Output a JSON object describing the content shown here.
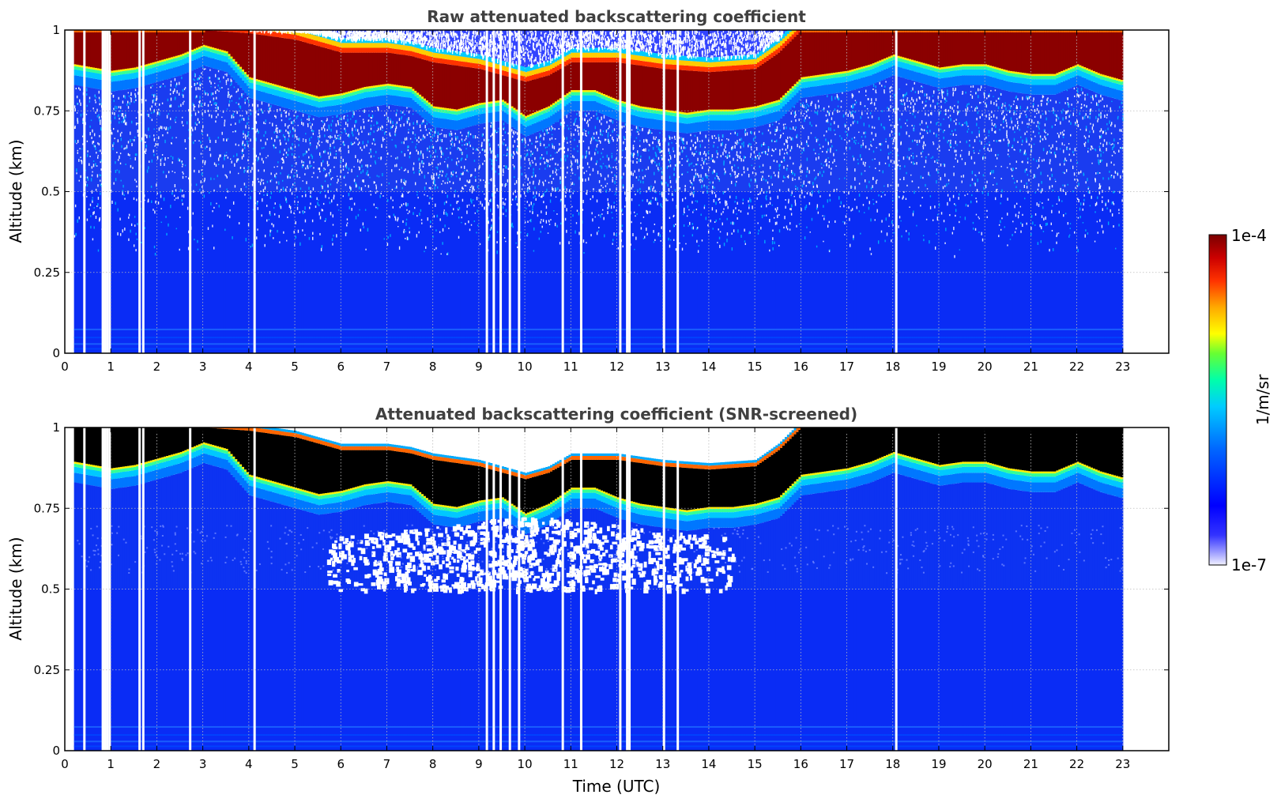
{
  "chart_data": [
    {
      "type": "heatmap",
      "title": "Raw attenuated backscattering coefficient",
      "xlabel": "",
      "ylabel": "Altitude (km)",
      "xlim": [
        0,
        24
      ],
      "ylim": [
        0,
        1
      ],
      "xticks": [
        "0",
        "1",
        "2",
        "3",
        "4",
        "5",
        "6",
        "7",
        "8",
        "9",
        "10",
        "11",
        "12",
        "13",
        "14",
        "15",
        "16",
        "17",
        "18",
        "19",
        "20",
        "21",
        "22",
        "23"
      ],
      "yticks": [
        "0",
        "0.25",
        "0.5",
        "0.75",
        "1"
      ],
      "grid": true,
      "data_time_range": [
        0.2,
        23.0
      ],
      "layer_base_km": [
        [
          0.2,
          0.86
        ],
        [
          0.6,
          0.85
        ],
        [
          1.0,
          0.84
        ],
        [
          1.5,
          0.85
        ],
        [
          2.0,
          0.87
        ],
        [
          2.5,
          0.89
        ],
        [
          3.0,
          0.92
        ],
        [
          3.5,
          0.9
        ],
        [
          4.0,
          0.82
        ],
        [
          4.5,
          0.8
        ],
        [
          5.0,
          0.78
        ],
        [
          5.5,
          0.76
        ],
        [
          6.0,
          0.77
        ],
        [
          6.5,
          0.79
        ],
        [
          7.0,
          0.8
        ],
        [
          7.5,
          0.79
        ],
        [
          8.0,
          0.73
        ],
        [
          8.5,
          0.72
        ],
        [
          9.0,
          0.74
        ],
        [
          9.5,
          0.75
        ],
        [
          10.0,
          0.7
        ],
        [
          10.5,
          0.73
        ],
        [
          11.0,
          0.78
        ],
        [
          11.5,
          0.78
        ],
        [
          12.0,
          0.75
        ],
        [
          12.5,
          0.73
        ],
        [
          13.0,
          0.72
        ],
        [
          13.5,
          0.71
        ],
        [
          14.0,
          0.72
        ],
        [
          14.5,
          0.72
        ],
        [
          15.0,
          0.73
        ],
        [
          15.5,
          0.75
        ],
        [
          16.0,
          0.82
        ],
        [
          16.5,
          0.83
        ],
        [
          17.0,
          0.84
        ],
        [
          17.5,
          0.86
        ],
        [
          18.0,
          0.89
        ],
        [
          18.5,
          0.87
        ],
        [
          19.0,
          0.85
        ],
        [
          19.5,
          0.86
        ],
        [
          20.0,
          0.86
        ],
        [
          20.5,
          0.84
        ],
        [
          21.0,
          0.83
        ],
        [
          21.5,
          0.83
        ],
        [
          22.0,
          0.86
        ],
        [
          22.5,
          0.83
        ],
        [
          23.0,
          0.81
        ]
      ],
      "layer_top_km": [
        [
          0.2,
          1.0
        ],
        [
          3.0,
          1.0
        ],
        [
          4.0,
          0.99
        ],
        [
          5.0,
          0.97
        ],
        [
          6.0,
          0.93
        ],
        [
          7.0,
          0.93
        ],
        [
          7.5,
          0.92
        ],
        [
          8.0,
          0.9
        ],
        [
          9.0,
          0.88
        ],
        [
          10.0,
          0.84
        ],
        [
          10.5,
          0.86
        ],
        [
          11.0,
          0.9
        ],
        [
          12.0,
          0.9
        ],
        [
          13.0,
          0.88
        ],
        [
          14.0,
          0.87
        ],
        [
          15.0,
          0.88
        ],
        [
          15.5,
          0.93
        ],
        [
          16.0,
          1.0
        ],
        [
          23.0,
          1.0
        ]
      ],
      "data_gaps_utc": [
        0.4,
        0.8,
        0.85,
        0.9,
        0.95,
        1.6,
        1.68,
        2.7,
        4.1,
        9.15,
        9.3,
        9.45,
        9.65,
        9.85,
        10.8,
        11.2,
        12.05,
        12.2,
        12.25,
        13.0,
        13.3,
        18.05
      ]
    },
    {
      "type": "heatmap",
      "title": "Attenuated backscattering coefficient (SNR-screened)",
      "xlabel": "Time (UTC)",
      "ylabel": "Altitude (km)",
      "xlim": [
        0,
        24
      ],
      "ylim": [
        0,
        1
      ],
      "xticks": [
        "0",
        "1",
        "2",
        "3",
        "4",
        "5",
        "6",
        "7",
        "8",
        "9",
        "10",
        "11",
        "12",
        "13",
        "14",
        "15",
        "16",
        "17",
        "18",
        "19",
        "20",
        "21",
        "22",
        "23"
      ],
      "yticks": [
        "0",
        "0.25",
        "0.5",
        "0.75",
        "1"
      ],
      "grid": true,
      "data_time_range": [
        0.2,
        23.0
      ],
      "layer_base_km": [
        [
          0.2,
          0.86
        ],
        [
          0.6,
          0.85
        ],
        [
          1.0,
          0.84
        ],
        [
          1.5,
          0.85
        ],
        [
          2.0,
          0.87
        ],
        [
          2.5,
          0.89
        ],
        [
          3.0,
          0.92
        ],
        [
          3.5,
          0.9
        ],
        [
          4.0,
          0.82
        ],
        [
          4.5,
          0.8
        ],
        [
          5.0,
          0.78
        ],
        [
          5.5,
          0.76
        ],
        [
          6.0,
          0.77
        ],
        [
          6.5,
          0.79
        ],
        [
          7.0,
          0.8
        ],
        [
          7.5,
          0.79
        ],
        [
          8.0,
          0.73
        ],
        [
          8.5,
          0.72
        ],
        [
          9.0,
          0.74
        ],
        [
          9.5,
          0.75
        ],
        [
          10.0,
          0.7
        ],
        [
          10.5,
          0.73
        ],
        [
          11.0,
          0.78
        ],
        [
          11.5,
          0.78
        ],
        [
          12.0,
          0.75
        ],
        [
          12.5,
          0.73
        ],
        [
          13.0,
          0.72
        ],
        [
          13.5,
          0.71
        ],
        [
          14.0,
          0.72
        ],
        [
          14.5,
          0.72
        ],
        [
          15.0,
          0.73
        ],
        [
          15.5,
          0.75
        ],
        [
          16.0,
          0.82
        ],
        [
          16.5,
          0.83
        ],
        [
          17.0,
          0.84
        ],
        [
          17.5,
          0.86
        ],
        [
          18.0,
          0.89
        ],
        [
          18.5,
          0.87
        ],
        [
          19.0,
          0.85
        ],
        [
          19.5,
          0.86
        ],
        [
          20.0,
          0.86
        ],
        [
          20.5,
          0.84
        ],
        [
          21.0,
          0.83
        ],
        [
          21.5,
          0.83
        ],
        [
          22.0,
          0.86
        ],
        [
          22.5,
          0.83
        ],
        [
          23.0,
          0.81
        ]
      ],
      "layer_top_km": [
        [
          0.2,
          1.0
        ],
        [
          3.0,
          1.0
        ],
        [
          4.0,
          0.99
        ],
        [
          5.0,
          0.97
        ],
        [
          6.0,
          0.93
        ],
        [
          7.0,
          0.93
        ],
        [
          7.5,
          0.92
        ],
        [
          8.0,
          0.9
        ],
        [
          9.0,
          0.88
        ],
        [
          10.0,
          0.84
        ],
        [
          10.5,
          0.86
        ],
        [
          11.0,
          0.9
        ],
        [
          12.0,
          0.9
        ],
        [
          13.0,
          0.88
        ],
        [
          14.0,
          0.87
        ],
        [
          15.0,
          0.88
        ],
        [
          15.5,
          0.93
        ],
        [
          16.0,
          1.0
        ],
        [
          23.0,
          1.0
        ]
      ],
      "screened_region_utc": [
        5.7,
        14.5
      ],
      "screened_region_km": [
        0.5,
        0.73
      ],
      "data_gaps_utc": [
        0.4,
        0.8,
        0.85,
        0.9,
        0.95,
        1.6,
        1.68,
        2.7,
        4.1,
        9.15,
        9.3,
        9.45,
        9.65,
        9.85,
        10.8,
        11.2,
        12.05,
        12.2,
        12.25,
        13.0,
        13.3,
        18.05
      ]
    }
  ],
  "colorbar": {
    "label": "1/m/sr",
    "min_label": "1e-7",
    "max_label": "1e-4",
    "scale": "log",
    "colormap": [
      "#e6e6ff",
      "#b3b3ff",
      "#6666ff",
      "#0000ff",
      "#0033ff",
      "#0066ff",
      "#0099ff",
      "#00ccff",
      "#00ffcc",
      "#33ff66",
      "#99ff00",
      "#ffff00",
      "#ffcc00",
      "#ff8800",
      "#ff3300",
      "#cc0000",
      "#8b0000"
    ]
  }
}
